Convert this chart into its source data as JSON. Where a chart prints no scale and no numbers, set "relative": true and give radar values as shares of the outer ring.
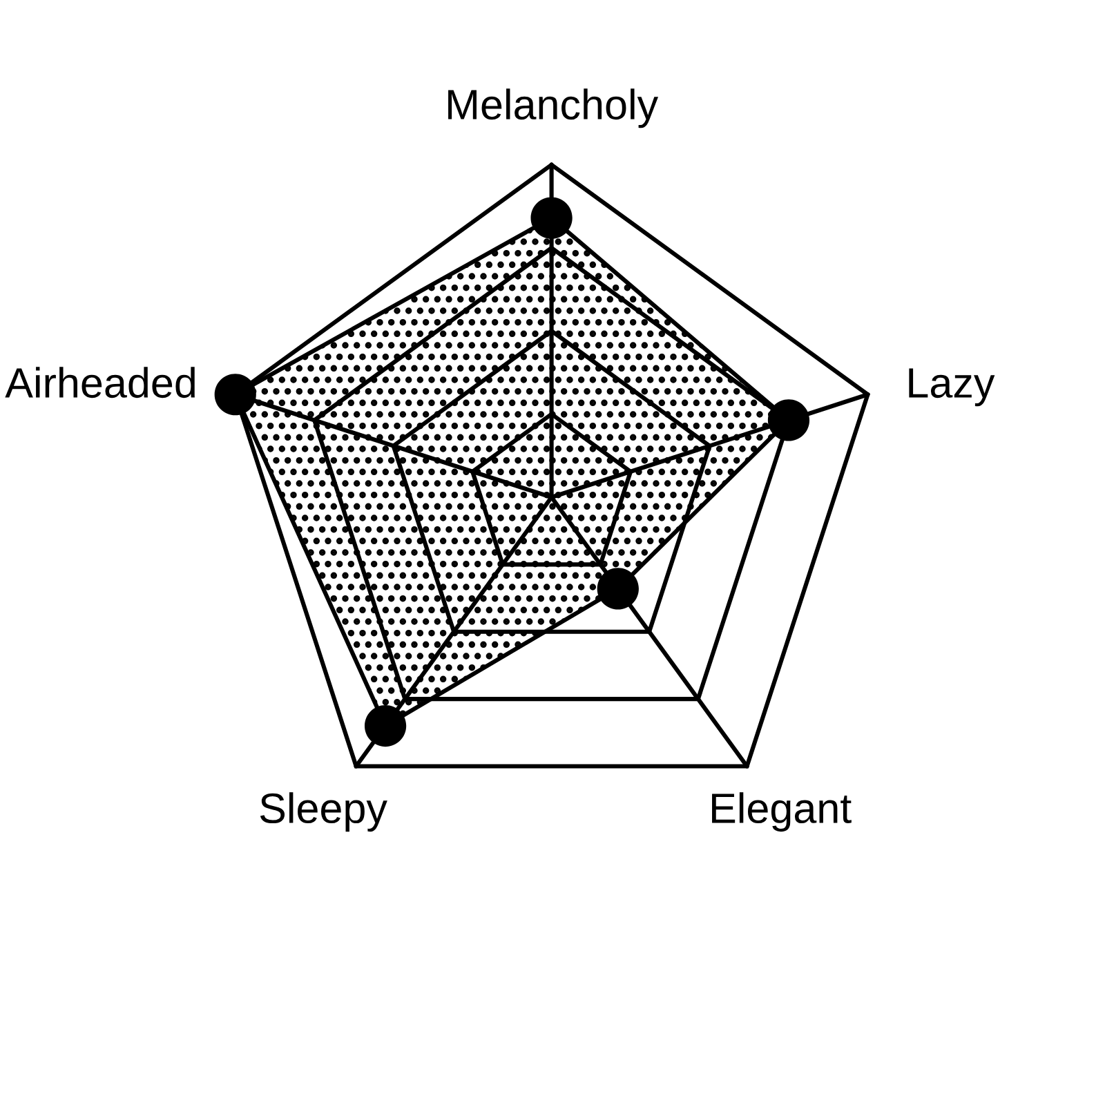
{
  "chart_data": {
    "type": "radar",
    "categories": [
      "Melancholy",
      "Lazy",
      "Elegant",
      "Sleepy",
      "Airheaded"
    ],
    "relative": true,
    "series": [
      {
        "color": "#000000",
        "values": [
          0.84,
          0.75,
          0.34,
          0.85,
          1.0
        ]
      }
    ],
    "grid": true,
    "marker": "circle"
  }
}
